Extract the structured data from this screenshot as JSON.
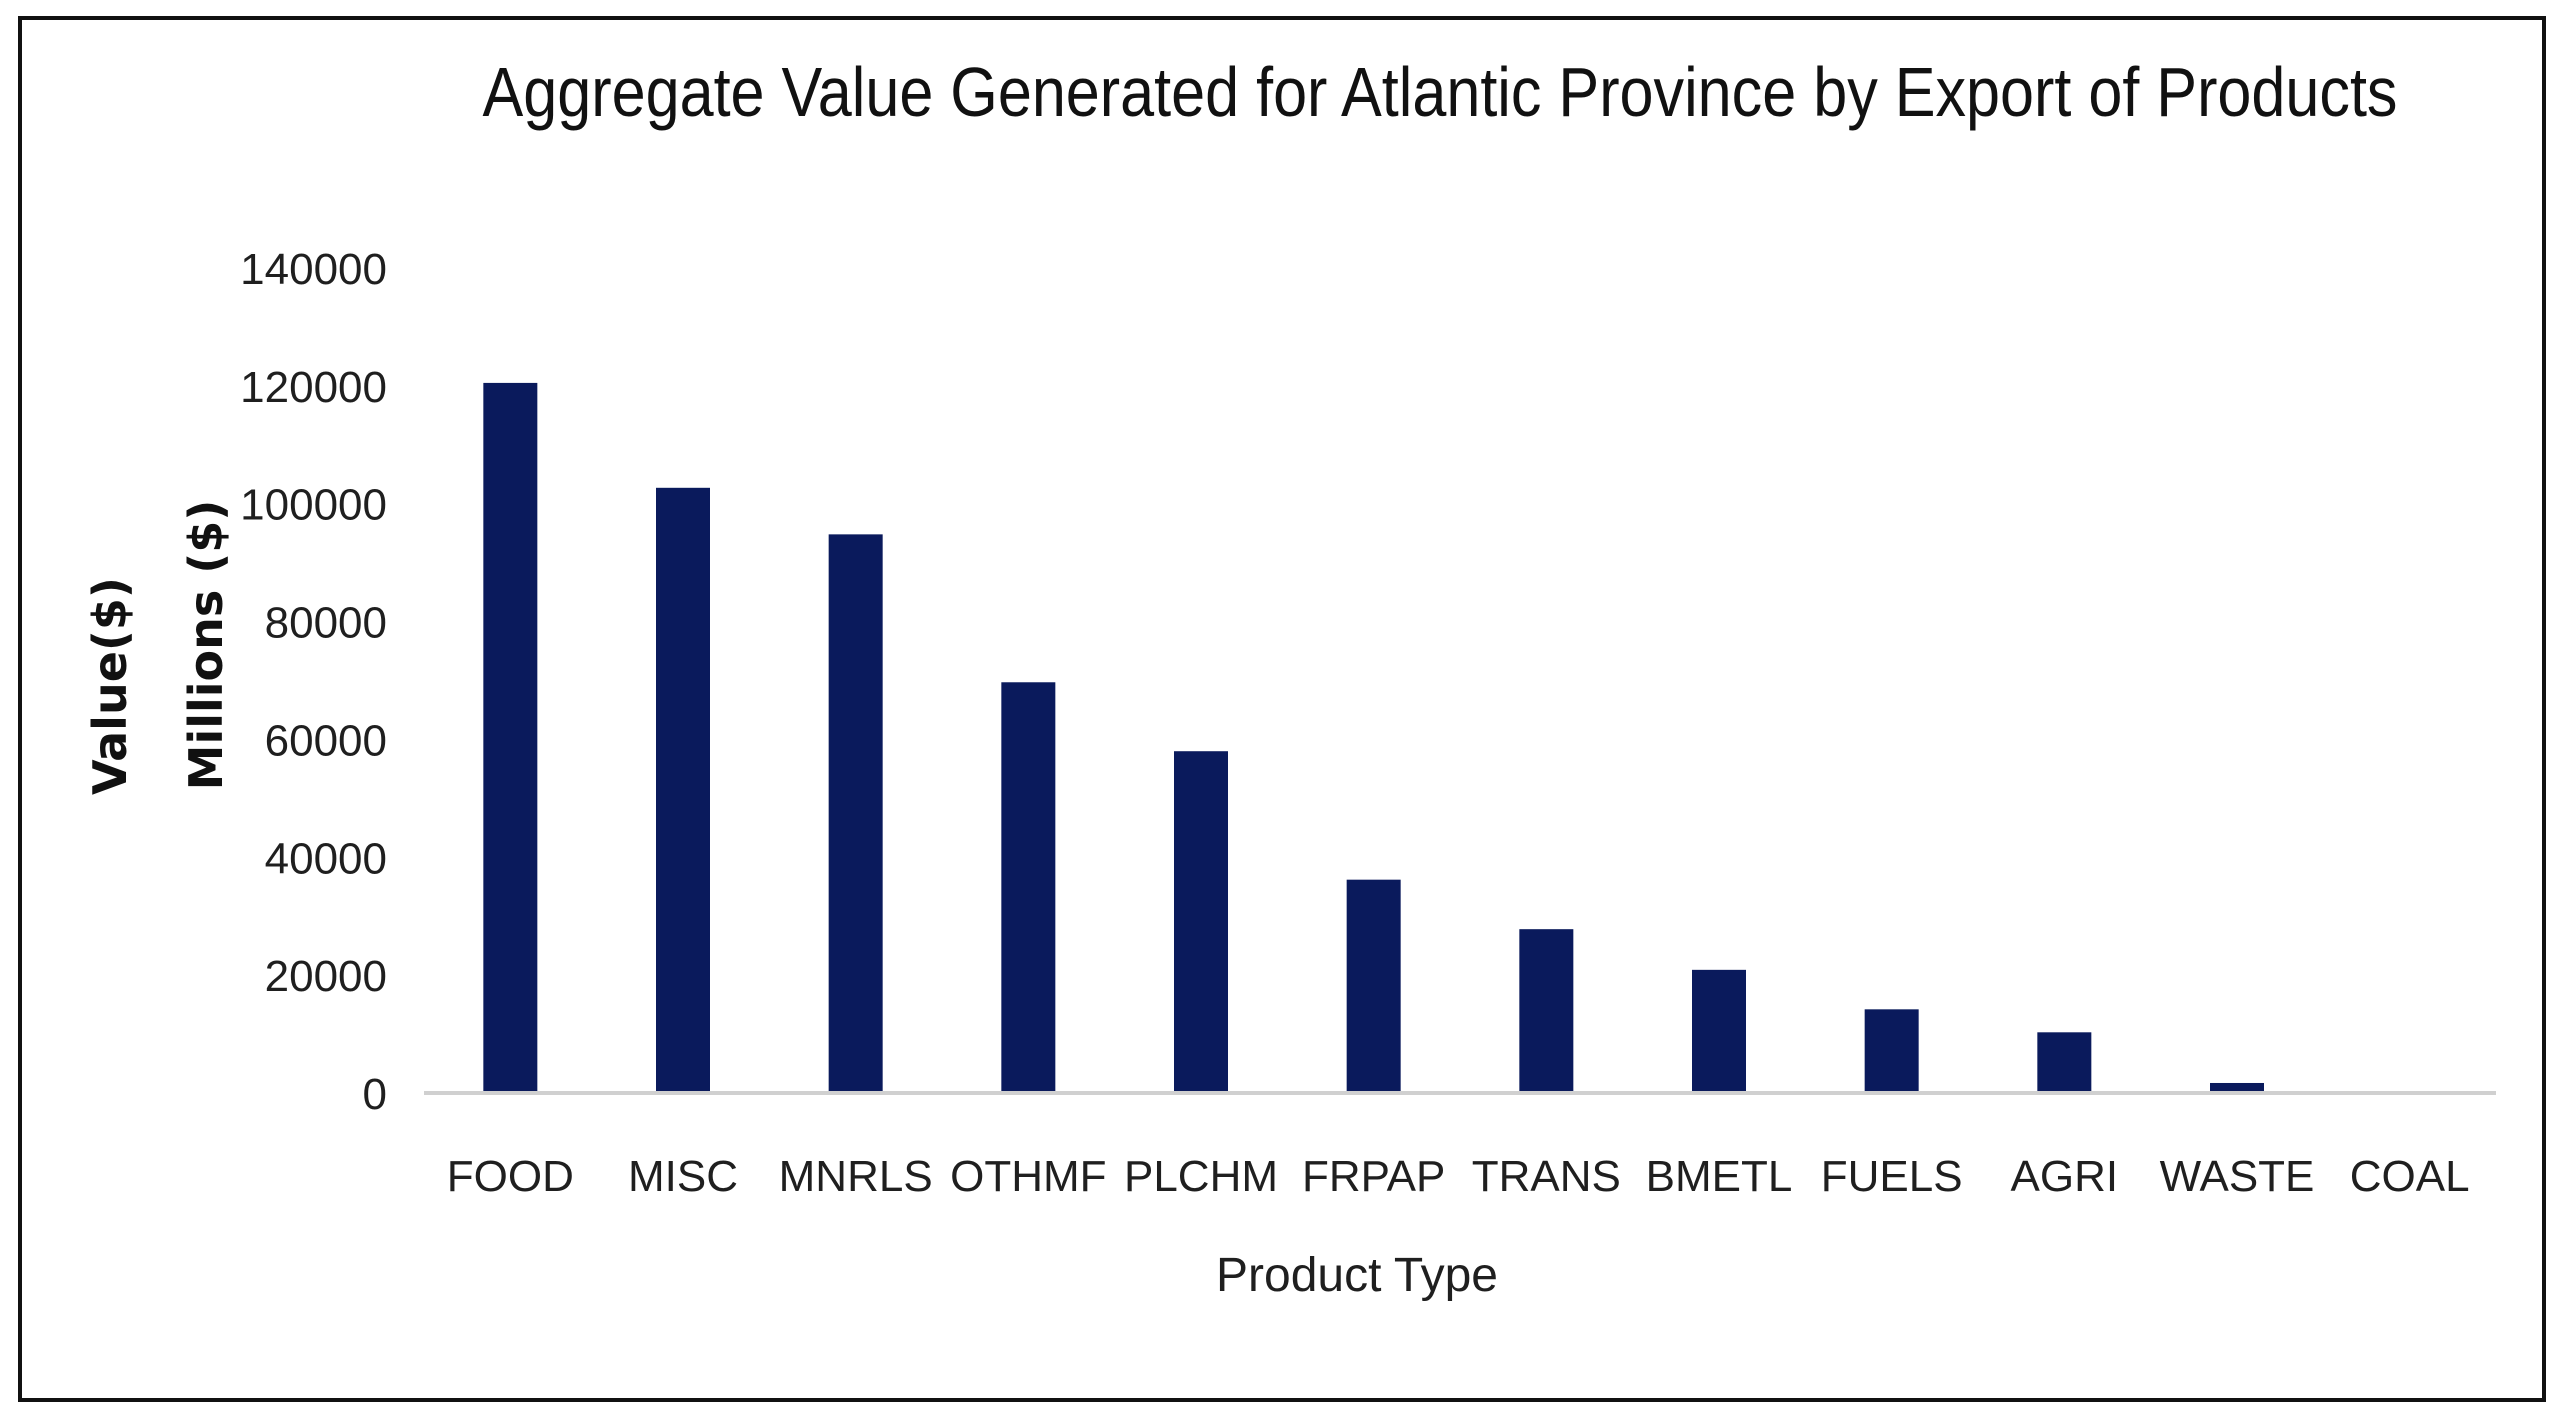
{
  "chart_data": {
    "type": "bar",
    "title": "Aggregate Value Generated for Atlantic Province by Export of Products",
    "xlabel": "Product Type",
    "ylabel_lines": [
      "Value($)",
      "Millions ($)"
    ],
    "categories": [
      "FOOD",
      "MISC",
      "MNRLS",
      "OTHMF",
      "PLCHM",
      "FRPAP",
      "TRANS",
      "BMETL",
      "FUELS",
      "AGRI",
      "WASTE",
      "COAL"
    ],
    "values": [
      120500,
      102700,
      94800,
      69700,
      58000,
      36200,
      27800,
      20900,
      14200,
      10300,
      1700,
      0
    ],
    "ylim": [
      0,
      140000
    ],
    "yticks": [
      0,
      20000,
      40000,
      60000,
      80000,
      100000,
      120000,
      140000
    ],
    "ytick_labels": [
      "0",
      "20000",
      "40000",
      "60000",
      "80000",
      "100000",
      "120000",
      "140000"
    ],
    "grid": false,
    "legend": "none",
    "bar_color": "#0a1a5c",
    "axis_color": "#d0d0d0"
  }
}
